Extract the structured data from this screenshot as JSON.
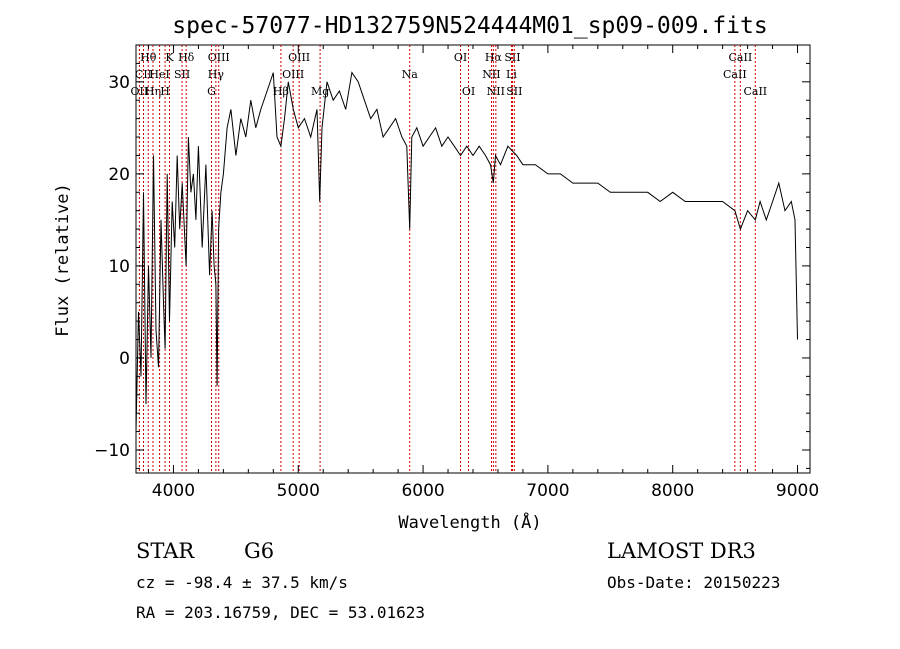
{
  "chart_data": {
    "type": "line",
    "title": "spec-57077-HD132759N524444M01_sp09-009.fits",
    "xlabel": "Wavelength (Å)",
    "ylabel": "Flux (relative)",
    "xlim": [
      3700,
      9100
    ],
    "ylim": [
      -12.5,
      34
    ],
    "x_ticks": [
      4000,
      5000,
      6000,
      7000,
      8000,
      9000
    ],
    "y_ticks": [
      -10,
      0,
      10,
      20,
      30
    ],
    "line_color": "#000000",
    "marker_color": "#cc0000",
    "series": [
      {
        "name": "flux",
        "x": [
          3700,
          3720,
          3740,
          3760,
          3780,
          3800,
          3820,
          3840,
          3860,
          3880,
          3900,
          3920,
          3933,
          3950,
          3968,
          3990,
          4010,
          4030,
          4050,
          4070,
          4101,
          4120,
          4140,
          4160,
          4180,
          4200,
          4230,
          4260,
          4290,
          4310,
          4326,
          4340,
          4350,
          4362,
          4380,
          4400,
          4430,
          4460,
          4500,
          4540,
          4580,
          4620,
          4660,
          4700,
          4750,
          4800,
          4830,
          4861,
          4890,
          4920,
          4960,
          5000,
          5050,
          5100,
          5150,
          5172,
          5190,
          5230,
          5280,
          5330,
          5380,
          5430,
          5480,
          5530,
          5580,
          5630,
          5680,
          5730,
          5780,
          5830,
          5870,
          5893,
          5910,
          5950,
          6000,
          6050,
          6100,
          6150,
          6200,
          6250,
          6300,
          6350,
          6400,
          6450,
          6500,
          6540,
          6563,
          6580,
          6620,
          6680,
          6750,
          6800,
          6900,
          7000,
          7100,
          7200,
          7300,
          7400,
          7500,
          7600,
          7700,
          7800,
          7900,
          8000,
          8100,
          8200,
          8300,
          8400,
          8498,
          8542,
          8600,
          8662,
          8700,
          8750,
          8800,
          8850,
          8900,
          8950,
          8980,
          9000
        ],
        "y": [
          -8,
          5,
          -2,
          18,
          -5,
          10,
          0,
          22,
          3,
          -1,
          15,
          6,
          1,
          20,
          4,
          17,
          12,
          22,
          14,
          19,
          10,
          24,
          18,
          20,
          15,
          23,
          12,
          21,
          9,
          16,
          10,
          8,
          -3,
          14,
          18,
          20,
          25,
          27,
          22,
          26,
          24,
          28,
          25,
          27,
          29,
          31,
          24,
          23,
          26,
          30,
          27,
          25,
          26,
          24,
          27,
          17,
          25,
          30,
          28,
          29,
          27,
          31,
          30,
          28,
          26,
          27,
          24,
          25,
          26,
          24,
          23,
          14,
          24,
          25,
          23,
          24,
          25,
          23,
          24,
          23,
          22,
          23,
          22,
          23,
          22,
          21,
          19,
          22,
          21,
          23,
          22,
          21,
          21,
          20,
          20,
          19,
          19,
          19,
          18,
          18,
          18,
          18,
          17,
          18,
          17,
          17,
          17,
          17,
          16,
          14,
          16,
          15,
          17,
          15,
          17,
          19,
          16,
          17,
          15,
          2
        ]
      }
    ],
    "lines": [
      {
        "name": "Hθ",
        "x": 3798,
        "row": 0
      },
      {
        "name": "OII",
        "x": 3727,
        "row": 2
      },
      {
        "name": "CII",
        "x": 3760,
        "row": 1
      },
      {
        "name": "Hη",
        "x": 3836,
        "row": 2
      },
      {
        "name": "HeI",
        "x": 3889,
        "row": 1
      },
      {
        "name": "H",
        "x": 3933,
        "row": 2
      },
      {
        "name": "K",
        "x": 3968,
        "row": 0
      },
      {
        "name": "SII",
        "x": 4069,
        "row": 1
      },
      {
        "name": "Hδ",
        "x": 4102,
        "row": 0
      },
      {
        "name": "OIII",
        "x": 4363,
        "row": 0
      },
      {
        "name": "Hγ",
        "x": 4340,
        "row": 1
      },
      {
        "name": "G",
        "x": 4305,
        "row": 2
      },
      {
        "name": "Hβ",
        "x": 4861,
        "row": 2
      },
      {
        "name": "OIII",
        "x": 4959,
        "row": 1
      },
      {
        "name": "OIII",
        "x": 5007,
        "row": 0
      },
      {
        "name": "Mg",
        "x": 5175,
        "row": 2
      },
      {
        "name": "Na",
        "x": 5893,
        "row": 1
      },
      {
        "name": "OI",
        "x": 6300,
        "row": 0
      },
      {
        "name": "OI",
        "x": 6364,
        "row": 2
      },
      {
        "name": "Hα",
        "x": 6563,
        "row": 0
      },
      {
        "name": "NII",
        "x": 6548,
        "row": 1
      },
      {
        "name": "NII",
        "x": 6583,
        "row": 2
      },
      {
        "name": "SII",
        "x": 6716,
        "row": 0
      },
      {
        "name": "Li",
        "x": 6708,
        "row": 1
      },
      {
        "name": "SII",
        "x": 6731,
        "row": 2
      },
      {
        "name": "CaII",
        "x": 8542,
        "row": 0
      },
      {
        "name": "CaII",
        "x": 8498,
        "row": 1
      },
      {
        "name": "CaII",
        "x": 8662,
        "row": 2
      }
    ]
  },
  "info": {
    "class": "STAR",
    "subclass": "G6",
    "survey": "LAMOST DR3",
    "cz": "cz = -98.4 ± 37.5 km/s",
    "obs_date": "Obs-Date: 20150223",
    "coords": "RA = 203.16759, DEC =  53.01623"
  }
}
